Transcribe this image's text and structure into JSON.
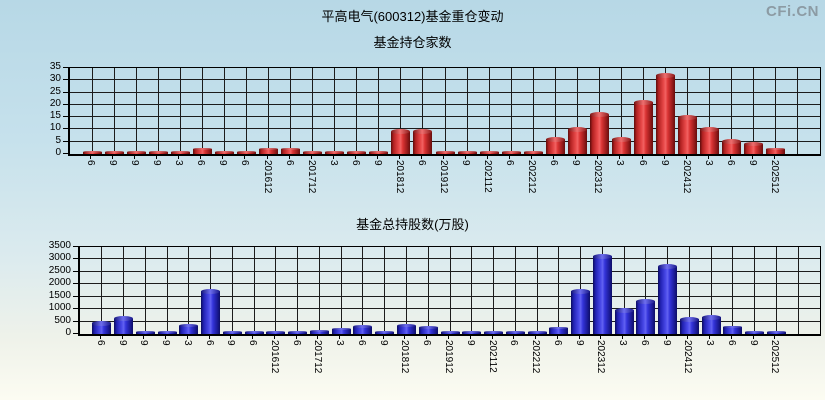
{
  "page": {
    "title": "平高电气(600312)基金重仓变动",
    "watermark": "CFi.CN"
  },
  "colors": {
    "background_top": "#b7d8e6",
    "background_bottom": "#fcfcf2",
    "grid": "#1c1c1c",
    "bar_red": "#e84848",
    "bar_blue": "#4848e8",
    "watermark_gray": "#8c9ba4"
  },
  "chart_data": [
    {
      "type": "bar",
      "title": "基金持仓家数",
      "bar_color": "red",
      "grid": true,
      "legend": "none",
      "ylim": [
        0,
        35
      ],
      "ytick_step": 5,
      "yticks": [
        0,
        5,
        10,
        15,
        20,
        25,
        30,
        35
      ],
      "categories": [
        "6",
        "9",
        "9",
        "9",
        "3",
        "6",
        "9",
        "6",
        "201612",
        "6",
        "201712",
        "3",
        "6",
        "9",
        "201812",
        "6",
        "201912",
        "9",
        "202112",
        "6",
        "202212",
        "6",
        "9",
        "202312",
        "3",
        "6",
        "9",
        "202412",
        "3",
        "6",
        "9",
        "202512"
      ],
      "values": [
        1,
        1,
        1,
        1,
        1,
        2,
        1,
        1,
        2,
        2,
        1,
        1,
        1,
        1,
        9,
        9,
        1,
        1,
        1,
        1,
        1,
        6,
        10,
        16,
        6,
        21,
        32,
        15,
        10,
        5,
        4,
        2
      ]
    },
    {
      "type": "bar",
      "title": "基金总持股数(万股)",
      "bar_color": "blue",
      "grid": true,
      "legend": "none",
      "ylim": [
        0,
        3500
      ],
      "ytick_step": 500,
      "yticks": [
        0,
        500,
        1000,
        1500,
        2000,
        2500,
        3000,
        3500
      ],
      "categories": [
        "6",
        "9",
        "9",
        "9",
        "3",
        "6",
        "9",
        "6",
        "201612",
        "6",
        "201712",
        "3",
        "6",
        "9",
        "201812",
        "6",
        "201912",
        "9",
        "202112",
        "6",
        "202212",
        "6",
        "9",
        "202312",
        "3",
        "6",
        "9",
        "202412",
        "3",
        "6",
        "9",
        "202512"
      ],
      "values": [
        420,
        620,
        80,
        40,
        330,
        1720,
        30,
        30,
        70,
        40,
        120,
        215,
        300,
        50,
        340,
        260,
        50,
        90,
        90,
        40,
        40,
        230,
        1730,
        3130,
        950,
        1310,
        2710,
        600,
        680,
        280,
        40,
        40
      ]
    }
  ]
}
